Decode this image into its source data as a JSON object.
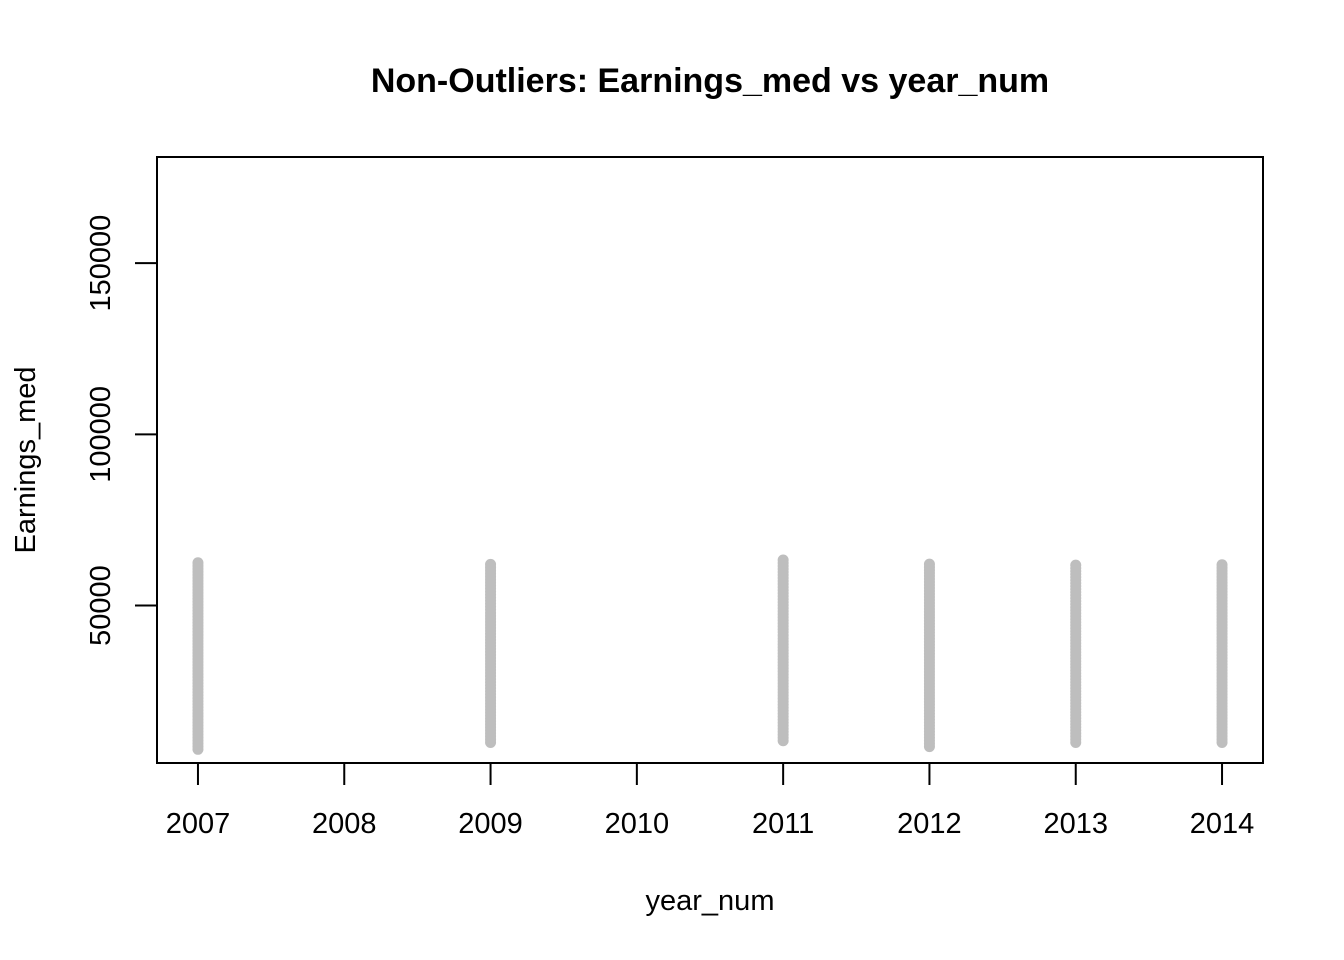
{
  "chart_data": {
    "type": "scatter",
    "title": "Non-Outliers: Earnings_med vs year_num",
    "xlabel": "year_num",
    "ylabel": "Earnings_med",
    "xlim": [
      2006.72,
      2014.28
    ],
    "ylim": [
      4000,
      181000
    ],
    "x_ticks": [
      2007,
      2008,
      2009,
      2010,
      2011,
      2012,
      2013,
      2014
    ],
    "y_ticks": [
      50000,
      100000,
      150000
    ],
    "grid": false,
    "legend": "none",
    "point_color": "#bebebe",
    "series": [
      {
        "points_by_x": [
          {
            "x": 2007,
            "y_min": 8000,
            "y_max": 62500
          },
          {
            "x": 2009,
            "y_min": 10000,
            "y_max": 62000
          },
          {
            "x": 2011,
            "y_min": 10500,
            "y_max": 63300
          },
          {
            "x": 2012,
            "y_min": 8800,
            "y_max": 62100
          },
          {
            "x": 2013,
            "y_min": 10000,
            "y_max": 61800
          },
          {
            "x": 2014,
            "y_min": 10000,
            "y_max": 61900
          }
        ]
      }
    ]
  }
}
